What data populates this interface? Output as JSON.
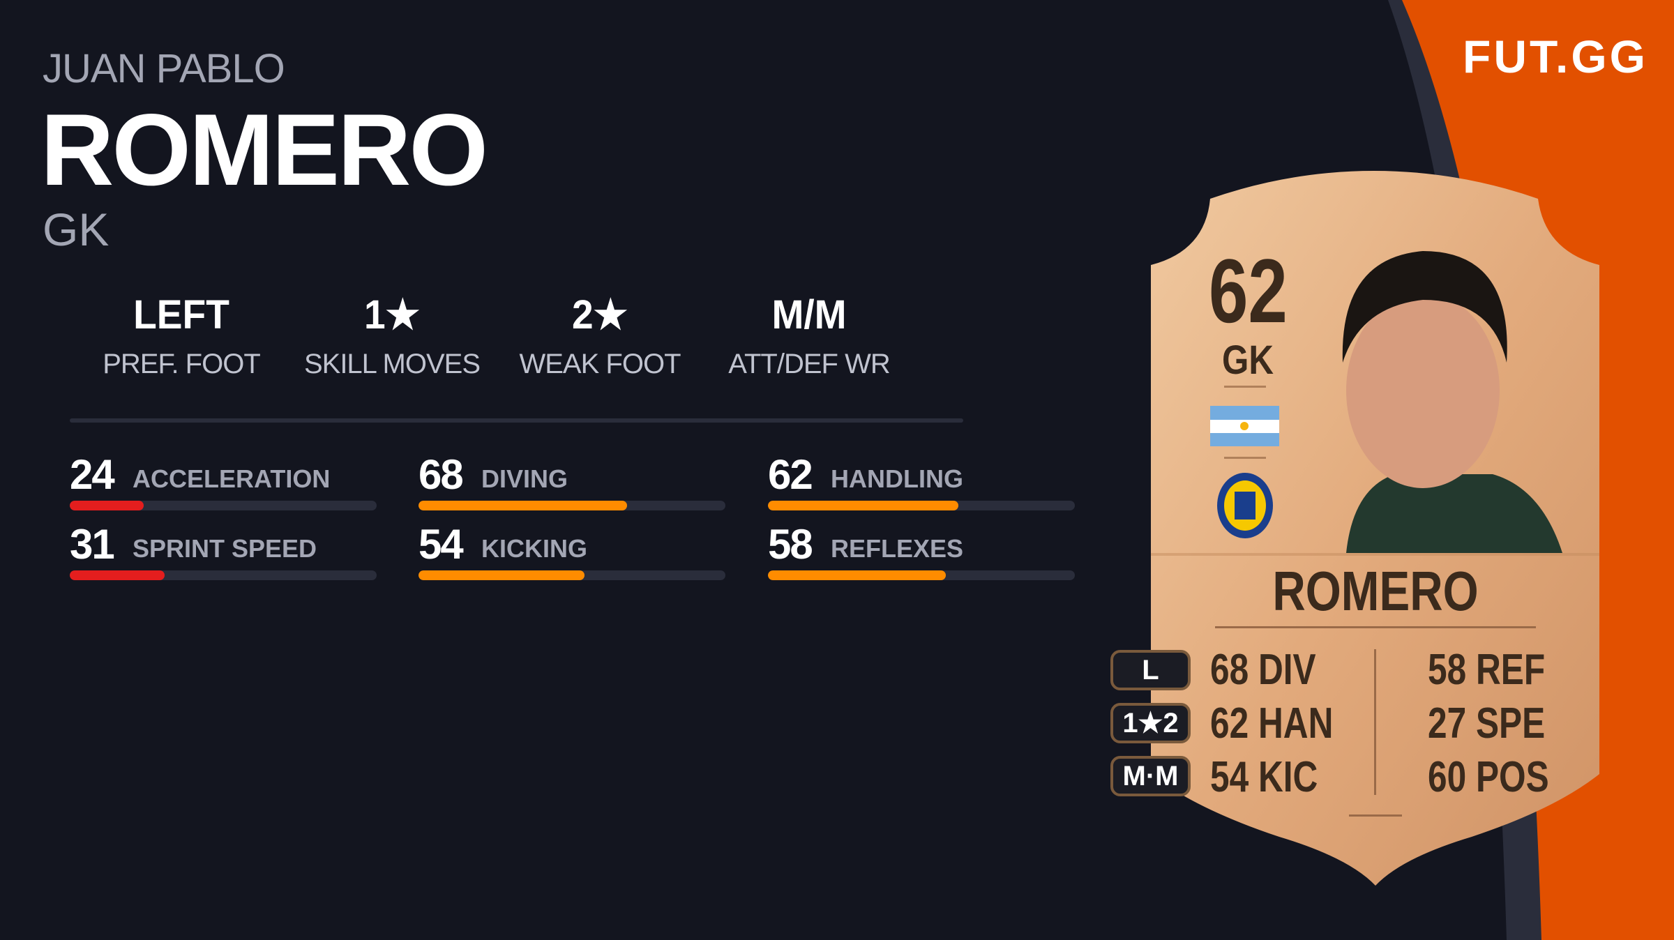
{
  "brand": {
    "logo": "FUT.GG",
    "accent": "#e25000"
  },
  "player": {
    "first_name": "JUAN PABLO",
    "last_name": "ROMERO",
    "position": "GK"
  },
  "info": [
    {
      "value": "LEFT",
      "label": "PREF. FOOT"
    },
    {
      "value": "1★",
      "label": "SKILL MOVES"
    },
    {
      "value": "2★",
      "label": "WEAK FOOT"
    },
    {
      "value": "M/M",
      "label": "ATT/DEF WR"
    }
  ],
  "stats": [
    {
      "value": "24",
      "label": "ACCELERATION",
      "pct": 24,
      "color": "#e41e1e"
    },
    {
      "value": "68",
      "label": "DIVING",
      "pct": 68,
      "color": "#ff8c00"
    },
    {
      "value": "62",
      "label": "HANDLING",
      "pct": 62,
      "color": "#ff8c00"
    },
    {
      "value": "31",
      "label": "SPRINT SPEED",
      "pct": 31,
      "color": "#e41e1e"
    },
    {
      "value": "54",
      "label": "KICKING",
      "pct": 54,
      "color": "#ff8c00"
    },
    {
      "value": "58",
      "label": "REFLEXES",
      "pct": 58,
      "color": "#ff8c00"
    }
  ],
  "card": {
    "rating": "62",
    "position": "GK",
    "name": "ROMERO",
    "nation": "argentina-flag",
    "club": "rosario-central-badge",
    "pills": [
      "L",
      "1★2",
      "M·M"
    ],
    "left_stats": [
      "68 DIV",
      "62 HAN",
      "54 KIC"
    ],
    "right_stats": [
      "58 REF",
      "27 SPE",
      "60 POS"
    ]
  }
}
